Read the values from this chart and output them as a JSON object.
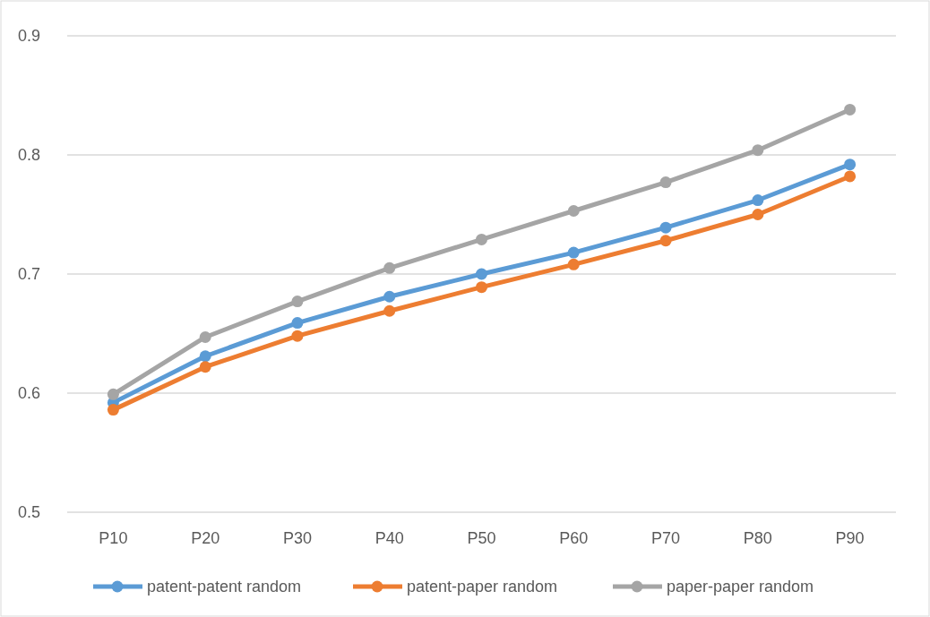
{
  "chart_data": {
    "type": "line",
    "categories": [
      "P10",
      "P20",
      "P30",
      "P40",
      "P50",
      "P60",
      "P70",
      "P80",
      "P90"
    ],
    "series": [
      {
        "name": "patent-patent random",
        "color": "#5b9bd5",
        "values": [
          0.592,
          0.631,
          0.659,
          0.681,
          0.7,
          0.718,
          0.739,
          0.762,
          0.792
        ]
      },
      {
        "name": "patent-paper random",
        "color": "#ed7d31",
        "values": [
          0.586,
          0.622,
          0.648,
          0.669,
          0.689,
          0.708,
          0.728,
          0.75,
          0.782
        ]
      },
      {
        "name": "paper-paper random",
        "color": "#a5a5a5",
        "values": [
          0.599,
          0.647,
          0.677,
          0.705,
          0.729,
          0.753,
          0.777,
          0.804,
          0.838
        ]
      }
    ],
    "ylim": [
      0.5,
      0.9
    ],
    "yticks": [
      0.5,
      0.6,
      0.7,
      0.8,
      0.9
    ],
    "grid": "y",
    "legend": "bottom",
    "marker": "circle",
    "line_style": "solid"
  }
}
